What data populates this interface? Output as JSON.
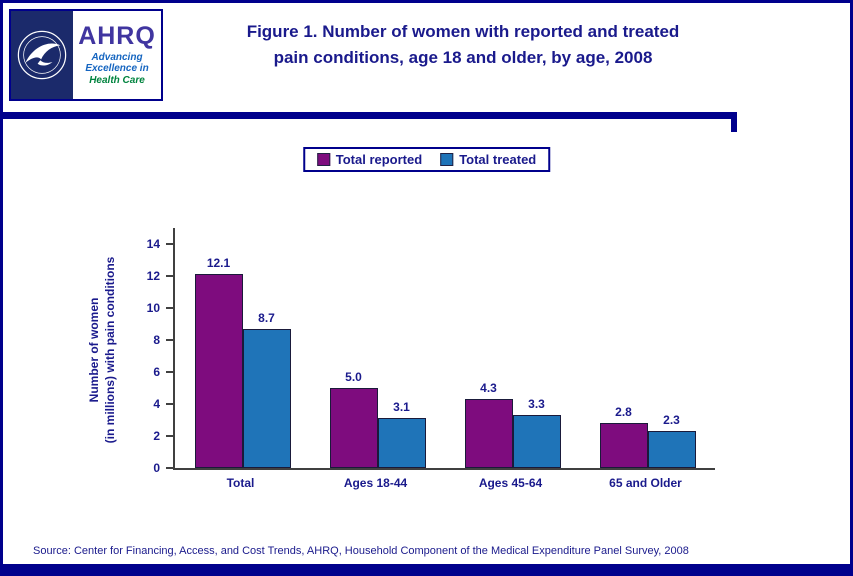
{
  "header": {
    "logo": {
      "ahrq": "AHRQ",
      "tagline": [
        "Advancing",
        "Excellence in",
        "Health Care"
      ]
    },
    "title_lines": [
      "Figure 1. Number of women with reported and treated",
      "pain conditions, age 18 and older, by age, 2008"
    ]
  },
  "chart_data": {
    "type": "bar",
    "title": "Figure 1. Number of women with reported and treated pain conditions, age 18 and older, by age, 2008",
    "categories": [
      "Total",
      "Ages 18-44",
      "Ages 45-64",
      "65 and Older"
    ],
    "series": [
      {
        "name": "Total reported",
        "color": "#7E0C7E",
        "values": [
          12.1,
          5.0,
          4.3,
          2.8
        ]
      },
      {
        "name": "Total treated",
        "color": "#1F74B8",
        "values": [
          8.7,
          3.1,
          3.3,
          2.3
        ]
      }
    ],
    "ylabel_lines": [
      "Number of women",
      "(in millions) with pain conditions"
    ],
    "yticks": [
      0,
      2,
      4,
      6,
      8,
      10,
      12,
      14
    ],
    "ylim": [
      0,
      15
    ],
    "grid": false,
    "legend_position": "top"
  },
  "footer": {
    "source": "Source: Center for Financing, Access, and Cost Trends, AHRQ, Household Component of the Medical Expenditure Panel Survey, 2008"
  },
  "colors": {
    "accent_navy": "#00008C",
    "title_text": "#1A1A8C",
    "reported_bar": "#7E0C7E",
    "treated_bar": "#1F74B8"
  }
}
